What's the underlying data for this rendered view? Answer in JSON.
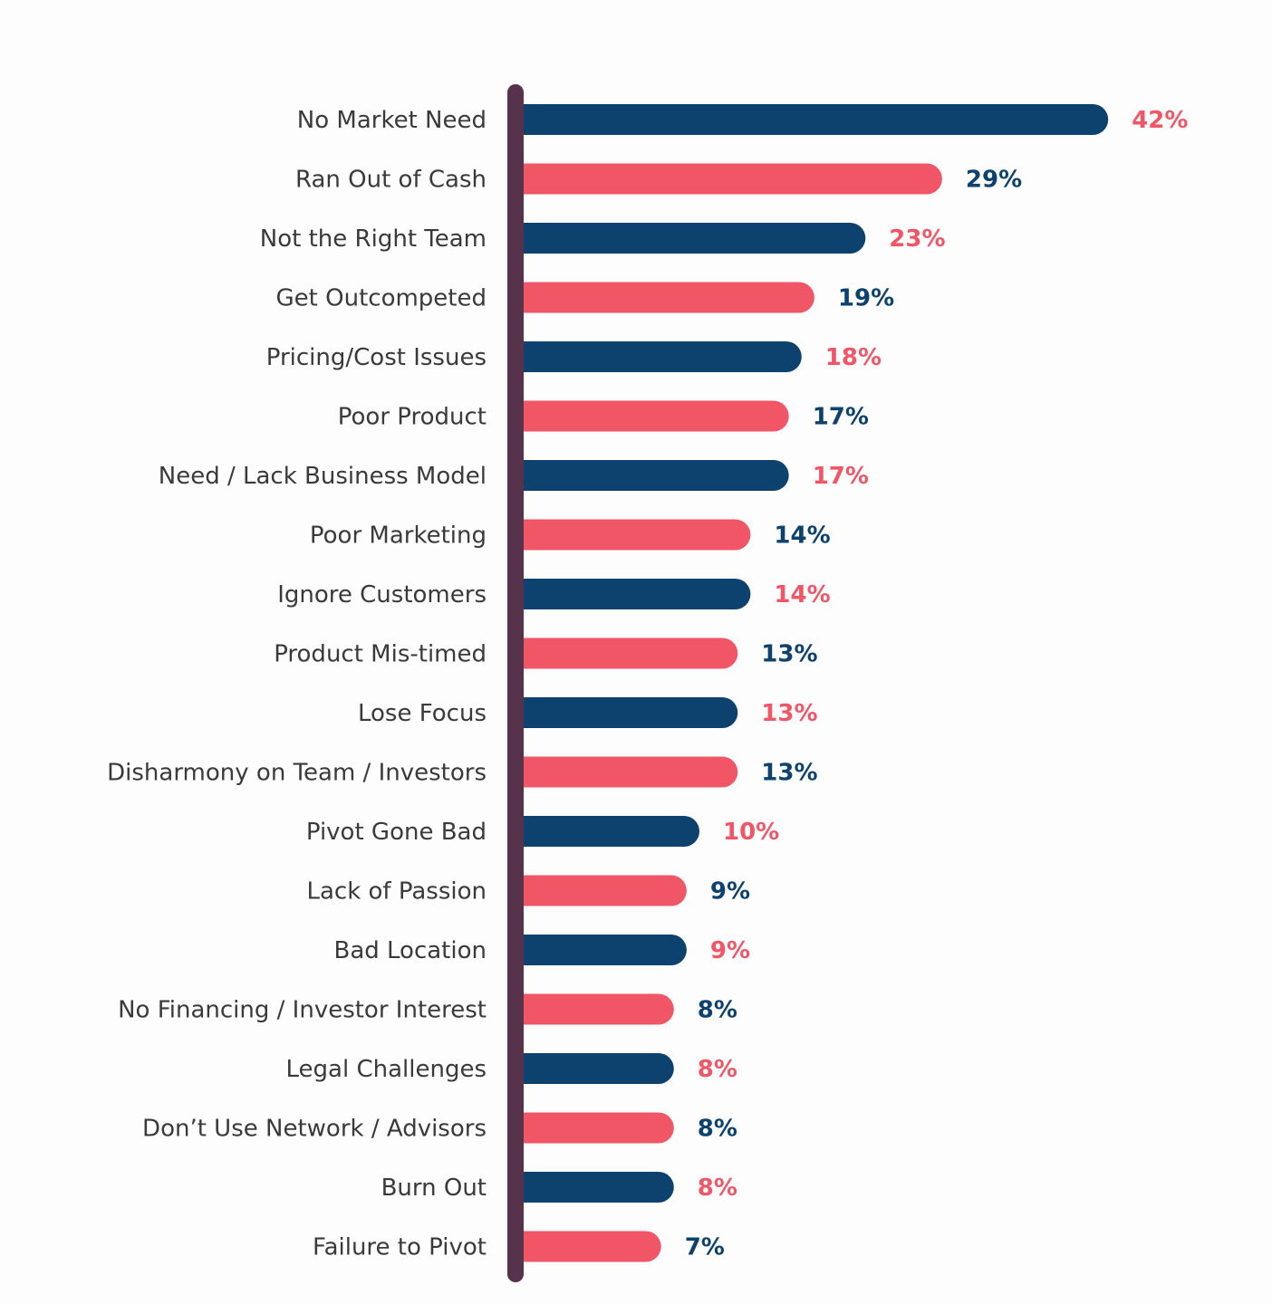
{
  "chart_data": {
    "type": "bar",
    "orientation": "horizontal",
    "title": "",
    "xlabel": "",
    "ylabel": "",
    "categories": [
      "No Market Need",
      "Ran Out of Cash",
      "Not the Right Team",
      "Get Outcompeted",
      "Pricing/Cost Issues",
      "Poor Product",
      "Need / Lack Business Model",
      "Poor Marketing",
      "Ignore Customers",
      "Product Mis-timed",
      "Lose Focus",
      "Disharmony on Team / Investors",
      "Pivot Gone Bad",
      "Lack of Passion",
      "Bad Location",
      "No Financing / Investor Interest",
      "Legal Challenges",
      "Don’t Use Network / Advisors",
      "Burn Out",
      "Failure to Pivot"
    ],
    "values": [
      42,
      29,
      23,
      19,
      18,
      17,
      17,
      14,
      14,
      13,
      13,
      13,
      10,
      9,
      9,
      8,
      8,
      8,
      8,
      7
    ],
    "value_labels": [
      "42%",
      "29%",
      "23%",
      "19%",
      "18%",
      "17%",
      "17%",
      "14%",
      "14%",
      "13%",
      "13%",
      "13%",
      "10%",
      "9%",
      "9%",
      "8%",
      "8%",
      "8%",
      "8%",
      "7%"
    ],
    "unit": "%",
    "grid": false,
    "legend": "none",
    "colors": {
      "bar_primary": "#0d426e",
      "bar_secondary": "#f05666",
      "axis": "#56334a",
      "label_text": "#3a3a3a"
    },
    "bar_color_pattern": "alternating starting with primary; value label uses the opposite color"
  }
}
